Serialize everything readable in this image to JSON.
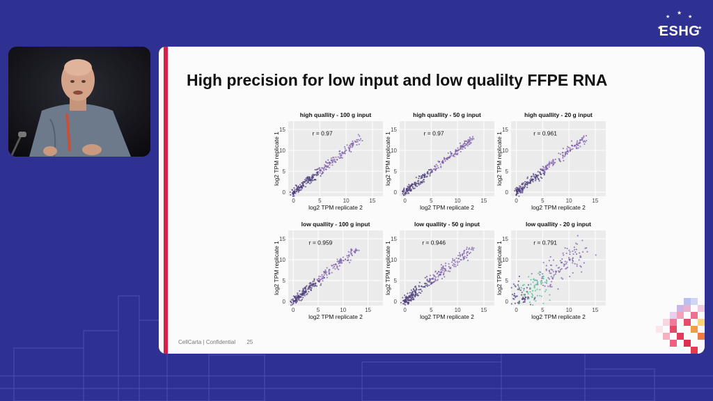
{
  "conference": {
    "logo_text": "ESHG"
  },
  "slide": {
    "title": "High precision for low input and low qualilty FFPE RNA",
    "footer_company": "CellCarta | Confidential",
    "page_number": "25"
  },
  "colors": {
    "background": "#2e3192",
    "accent": "#d6204a",
    "panel": "#ebebeb"
  },
  "chart_data": [
    {
      "type": "scatter",
      "title": "high quallity - 100 g input",
      "xlabel": "log2 TPM replicate 2",
      "ylabel": "log2 TPM replicate 1",
      "annotation": "r = 0.97",
      "xticks": [
        "0",
        "5",
        "10",
        "15"
      ],
      "yticks": [
        "0",
        "5",
        "10",
        "15"
      ],
      "xlim": [
        -1,
        17
      ],
      "ylim": [
        -1,
        17
      ]
    },
    {
      "type": "scatter",
      "title": "high quallity - 50 g input",
      "xlabel": "log2 TPM replicate 2",
      "ylabel": "log2 TPM replicate 1",
      "annotation": "r = 0.97",
      "xticks": [
        "0",
        "5",
        "10",
        "15"
      ],
      "yticks": [
        "0",
        "5",
        "10",
        "15"
      ],
      "xlim": [
        -1,
        17
      ],
      "ylim": [
        -1,
        17
      ]
    },
    {
      "type": "scatter",
      "title": "high quallity - 20 g input",
      "xlabel": "log2 TPM replicate 2",
      "ylabel": "log2 TPM replicate 1",
      "annotation": "r = 0.961",
      "xticks": [
        "0",
        "5",
        "10",
        "15"
      ],
      "yticks": [
        "0",
        "5",
        "10",
        "15"
      ],
      "xlim": [
        -1,
        17
      ],
      "ylim": [
        -1,
        17
      ]
    },
    {
      "type": "scatter",
      "title": "low quallity - 100 g input",
      "xlabel": "log2 TPM replicate 2",
      "ylabel": "log2 TPM replicate 1",
      "annotation": "r = 0.959",
      "xticks": [
        "0",
        "5",
        "10",
        "15"
      ],
      "yticks": [
        "0",
        "5",
        "10",
        "15"
      ],
      "xlim": [
        -1,
        18
      ],
      "ylim": [
        -1,
        17
      ]
    },
    {
      "type": "scatter",
      "title": "low quallity - 50 g input",
      "xlabel": "log2 TPM replicate 2",
      "ylabel": "log2 TPM replicate 1",
      "annotation": "r = 0.946",
      "xticks": [
        "0",
        "5",
        "10",
        "15"
      ],
      "yticks": [
        "0",
        "5",
        "10",
        "15"
      ],
      "xlim": [
        -1,
        17
      ],
      "ylim": [
        -1,
        17
      ]
    },
    {
      "type": "scatter",
      "title": "low quallity - 20 g input",
      "xlabel": "log2 TPM replicate 2",
      "ylabel": "log2 TPM replicate 1",
      "annotation": "r = 0.791",
      "xticks": [
        "0",
        "5",
        "10",
        "15"
      ],
      "yticks": [
        "0",
        "5",
        "10",
        "15"
      ],
      "xlim": [
        -1,
        17
      ],
      "ylim": [
        -1,
        17
      ]
    }
  ]
}
